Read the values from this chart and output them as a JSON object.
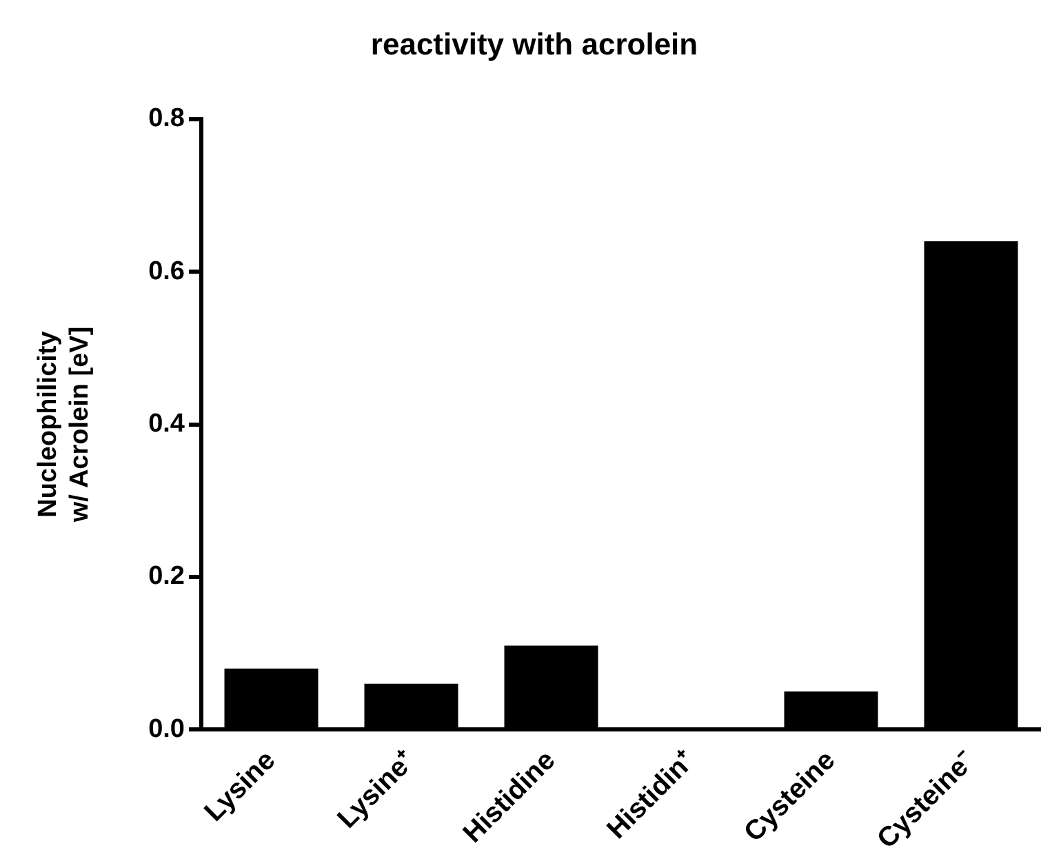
{
  "chart_data": {
    "type": "bar",
    "title": "reactivity with acrolein",
    "ylabel": "Nucleophilicity\nw/ Acrolein [eV]",
    "categories": [
      "Lysine",
      "Lysine⁺",
      "Histidine",
      "Histidin⁺",
      "Cysteine",
      "Cysteine⁻"
    ],
    "values": [
      0.08,
      0.06,
      0.11,
      0,
      0.05,
      0.64
    ],
    "colors": [
      "#000000",
      "#000000",
      "#000000",
      "#000000",
      "#000000",
      "#000000"
    ],
    "ylim": [
      0,
      0.8
    ],
    "yticks": [
      {
        "value": 0,
        "label": "0.0"
      },
      0.2,
      0.4,
      0.6,
      0.8
    ]
  }
}
